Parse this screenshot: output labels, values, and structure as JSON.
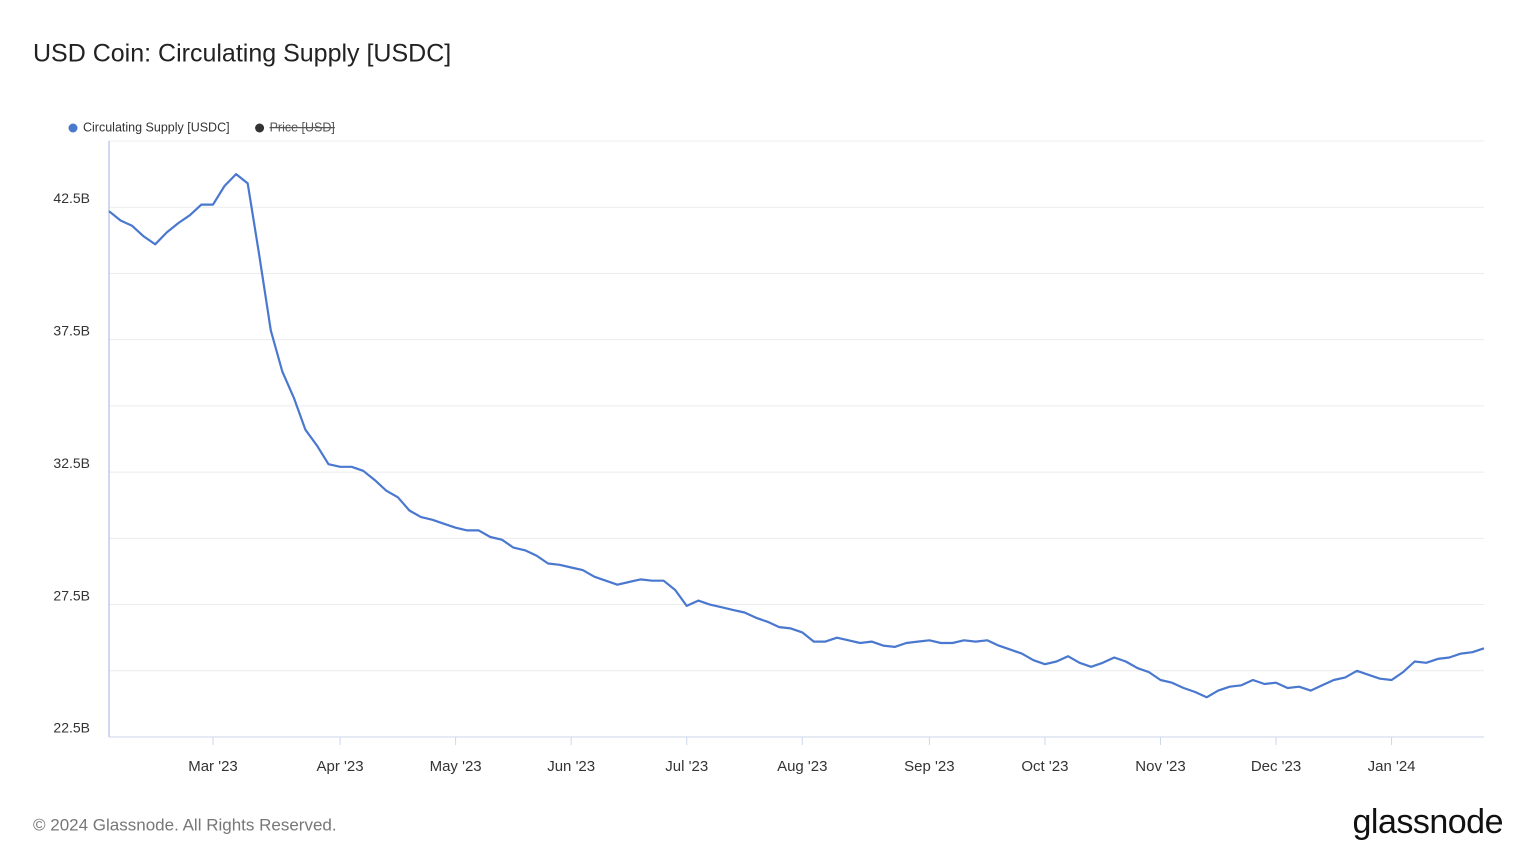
{
  "chart_data": {
    "type": "line",
    "title": "USD Coin: Circulating Supply [USDC]",
    "categories": [
      null,
      null,
      null,
      null,
      null,
      null,
      null,
      null,
      null,
      "Mar '23",
      null,
      null,
      null,
      null,
      null,
      null,
      null,
      null,
      null,
      null,
      "Apr '23",
      null,
      null,
      null,
      null,
      null,
      null,
      null,
      null,
      null,
      "May '23",
      null,
      null,
      null,
      null,
      null,
      null,
      null,
      null,
      null,
      "Jun '23",
      null,
      null,
      null,
      null,
      null,
      null,
      null,
      null,
      null,
      "Jul '23",
      null,
      null,
      null,
      null,
      null,
      null,
      null,
      null,
      null,
      "Aug '23",
      null,
      null,
      null,
      null,
      null,
      null,
      null,
      null,
      null,
      null,
      "Sep '23",
      null,
      null,
      null,
      null,
      null,
      null,
      null,
      null,
      null,
      "Oct '23",
      null,
      null,
      null,
      null,
      null,
      null,
      null,
      null,
      null,
      "Nov '23",
      null,
      null,
      null,
      null,
      null,
      null,
      null,
      null,
      null,
      "Dec '23",
      null,
      null,
      null,
      null,
      null,
      null,
      null,
      null,
      null,
      "Jan '24",
      null,
      null,
      null,
      null,
      null,
      null,
      null,
      null
    ],
    "series": [
      {
        "name": "Circulating Supply [USDC]",
        "color": "#4a78cf",
        "values": [
          42.35,
          42.0,
          41.8,
          41.4,
          41.1,
          41.55,
          41.9,
          42.2,
          42.6,
          42.6,
          43.3,
          43.75,
          43.4,
          40.7,
          37.85,
          36.3,
          35.3,
          34.1,
          33.5,
          32.8,
          32.7,
          32.7,
          32.55,
          32.2,
          31.8,
          31.55,
          31.05,
          30.8,
          30.7,
          30.55,
          30.4,
          30.3,
          30.3,
          30.05,
          29.95,
          29.65,
          29.55,
          29.35,
          29.05,
          29.0,
          28.9,
          28.8,
          28.55,
          28.4,
          28.25,
          28.35,
          28.45,
          28.4,
          28.4,
          28.05,
          27.45,
          27.65,
          27.5,
          27.4,
          27.3,
          27.2,
          27.0,
          26.85,
          26.65,
          26.6,
          26.45,
          26.1,
          26.1,
          26.25,
          26.15,
          26.05,
          26.1,
          25.95,
          25.9,
          26.05,
          26.1,
          26.15,
          26.05,
          26.05,
          26.15,
          26.1,
          26.15,
          25.95,
          25.8,
          25.65,
          25.4,
          25.25,
          25.35,
          25.55,
          25.3,
          25.15,
          25.3,
          25.5,
          25.35,
          25.1,
          24.95,
          24.65,
          24.55,
          24.35,
          24.2,
          24.0,
          24.25,
          24.4,
          24.45,
          24.65,
          24.5,
          24.55,
          24.35,
          24.4,
          24.25,
          24.45,
          24.65,
          24.75,
          25.0,
          24.85,
          24.7,
          24.65,
          24.95,
          25.35,
          25.3,
          25.45,
          25.5,
          25.65,
          25.7,
          25.85
        ]
      }
    ],
    "hidden_series": [
      {
        "name": "Price [USD]",
        "color": "#333333"
      }
    ],
    "ylim": [
      22.5,
      45
    ],
    "yticks": [
      {
        "value": 22.5,
        "label": "22.5B"
      },
      {
        "value": 27.5,
        "label": "27.5B"
      },
      {
        "value": 32.5,
        "label": "32.5B"
      },
      {
        "value": 37.5,
        "label": "37.5B"
      },
      {
        "value": 42.5,
        "label": "42.5B"
      }
    ],
    "ygrid": [
      25,
      30,
      35,
      40,
      45
    ],
    "grid": true
  },
  "footer": {
    "copyright": "© 2024 Glassnode. All Rights Reserved.",
    "brand": "glassnode"
  }
}
